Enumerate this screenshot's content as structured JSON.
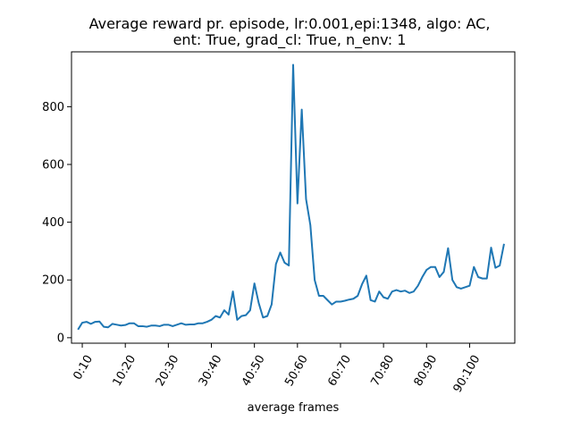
{
  "chart_data": {
    "type": "line",
    "title_line1": "Average reward pr. episode, lr:0.001,epi:1348, algo: AC,",
    "title_line2": "ent: True, grad_cl: True, n_env: 1",
    "xlabel": "average frames",
    "ylabel": "",
    "xlim": [
      -1.5,
      101.5
    ],
    "ylim": [
      -19,
      990
    ],
    "x_ticks": [
      {
        "value": 1,
        "label": "0:10"
      },
      {
        "value": 11,
        "label": "10:20"
      },
      {
        "value": 21,
        "label": "20:30"
      },
      {
        "value": 31,
        "label": "30:40"
      },
      {
        "value": 41,
        "label": "40:50"
      },
      {
        "value": 51,
        "label": "50:60"
      },
      {
        "value": 61,
        "label": "60:70"
      },
      {
        "value": 71,
        "label": "70:80"
      },
      {
        "value": 81,
        "label": "80:90"
      },
      {
        "value": 91,
        "label": "90:100"
      }
    ],
    "y_ticks": [
      {
        "value": 0,
        "label": "0"
      },
      {
        "value": 200,
        "label": "200"
      },
      {
        "value": 400,
        "label": "400"
      },
      {
        "value": 600,
        "label": "600"
      },
      {
        "value": 800,
        "label": "800"
      }
    ],
    "grid": false,
    "line_color": "#1f77b4",
    "series": [
      {
        "values": [
          28,
          52,
          55,
          48,
          55,
          56,
          38,
          36,
          48,
          45,
          42,
          44,
          50,
          50,
          40,
          40,
          38,
          42,
          42,
          40,
          45,
          45,
          40,
          45,
          50,
          45,
          46,
          46,
          50,
          50,
          55,
          62,
          75,
          70,
          95,
          80,
          160,
          62,
          75,
          78,
          95,
          188,
          120,
          70,
          75,
          115,
          255,
          295,
          260,
          250,
          945,
          465,
          790,
          480,
          390,
          200,
          145,
          145,
          130,
          115,
          125,
          125,
          128,
          132,
          135,
          145,
          185,
          215,
          130,
          125,
          160,
          140,
          135,
          160,
          165,
          160,
          163,
          155,
          160,
          180,
          210,
          235,
          245,
          245,
          210,
          228,
          310,
          200,
          175,
          170,
          175,
          180,
          245,
          210,
          205,
          205,
          312,
          242,
          250,
          325
        ]
      }
    ]
  }
}
